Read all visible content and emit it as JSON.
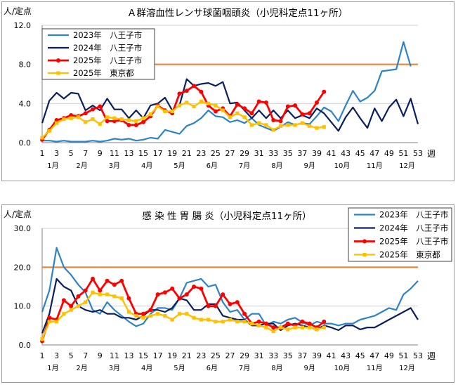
{
  "chart_data": [
    {
      "type": "line",
      "title": "Ａ群溶血性レンサ球菌咽頭炎（小児科定点11ヶ所）",
      "ylabel": "人/定点",
      "xlabel": "週",
      "ylim": [
        0,
        12
      ],
      "yticks": [
        "0.0",
        "4.0",
        "8.0",
        "12.0"
      ],
      "x": [
        1,
        2,
        3,
        4,
        5,
        6,
        7,
        8,
        9,
        10,
        11,
        12,
        13,
        14,
        15,
        16,
        17,
        18,
        19,
        20,
        21,
        22,
        23,
        24,
        25,
        26,
        27,
        28,
        29,
        30,
        31,
        32,
        33,
        34,
        35,
        36,
        37,
        38,
        39,
        40,
        41,
        42,
        43,
        44,
        45,
        46,
        47,
        48,
        49,
        50,
        51,
        52,
        53
      ],
      "xticks": [
        "1",
        "3",
        "5",
        "7",
        "9",
        "11",
        "13",
        "15",
        "17",
        "19",
        "21",
        "23",
        "25",
        "27",
        "29",
        "31",
        "33",
        "35",
        "37",
        "39",
        "41",
        "43",
        "45",
        "47",
        "49",
        "51",
        "53"
      ],
      "months": [
        "1月",
        "2月",
        "3月",
        "4月",
        "5月",
        "6月",
        "7月",
        "8月",
        "9月",
        "10月",
        "11月",
        "12月"
      ],
      "month_weeks": [
        2.5,
        6.5,
        11,
        15.5,
        20,
        24.5,
        29,
        33.5,
        38,
        42.5,
        47,
        51.5
      ],
      "threshold": 8,
      "threshold_color": "#ED7D31",
      "grid": "horizontal",
      "legend_position": "top-left",
      "series": [
        {
          "name": "2023年　八王子市",
          "color": "#2E83C6",
          "marker": "none",
          "values": [
            0.2,
            0.2,
            0.1,
            0.2,
            0.1,
            0.1,
            0.1,
            0.2,
            0.1,
            0.2,
            0.4,
            0.3,
            0.4,
            0.2,
            0.3,
            0.5,
            0.4,
            1.3,
            1.1,
            0.9,
            1.7,
            2.0,
            2.5,
            3.3,
            2.7,
            2.6,
            2.1,
            2.3,
            2.0,
            2.5,
            1.8,
            1.5,
            1.2,
            1.6,
            2.1,
            1.8,
            2.0,
            1.9,
            2.7,
            3.6,
            3.2,
            2.2,
            3.8,
            5.3,
            4.2,
            4.6,
            5.3,
            7.3,
            7.4,
            7.5,
            10.3,
            7.8,
            null
          ]
        },
        {
          "name": "2024年　八王子市",
          "color": "#0B1F5E",
          "marker": "none",
          "values": [
            2.0,
            4.3,
            5.1,
            4.5,
            5.1,
            5.0,
            3.3,
            3.8,
            3.3,
            4.5,
            3.4,
            3.4,
            2.5,
            3.3,
            2.5,
            3.8,
            4.0,
            4.6,
            3.3,
            3.8,
            6.5,
            5.8,
            6.0,
            6.1,
            5.8,
            6.2,
            4.0,
            4.1,
            3.3,
            2.5,
            3.3,
            2.5,
            3.3,
            2.5,
            3.3,
            2.5,
            2.8,
            2.5,
            3.5,
            3.0,
            2.1,
            1.2,
            2.6,
            3.6,
            2.5,
            1.5,
            3.5,
            2.2,
            3.6,
            4.4,
            2.7,
            4.5,
            1.9
          ]
        },
        {
          "name": "2025年　八王子市",
          "color": "#FF0000",
          "marker": "circle",
          "values": [
            0.3,
            1.3,
            2.3,
            2.5,
            2.8,
            2.7,
            3.0,
            3.4,
            3.7,
            2.2,
            2.2,
            2.3,
            1.8,
            1.8,
            2.1,
            2.7,
            3.8,
            3.3,
            3.0,
            5.0,
            5.3,
            5.8,
            5.2,
            3.8,
            3.2,
            3.5,
            2.7,
            3.9,
            3.5,
            3.0,
            4.2,
            4.1,
            2.3,
            2.2,
            3.7,
            3.8,
            2.9,
            3.0,
            4.1,
            5.2,
            null,
            null,
            null,
            null,
            null,
            null,
            null,
            null,
            null,
            null,
            null,
            null,
            null
          ]
        },
        {
          "name": "2025年　東京都",
          "color": "#FFC000",
          "marker": "square",
          "values": [
            0.5,
            1.2,
            2.0,
            2.4,
            2.5,
            2.6,
            2.1,
            2.4,
            1.9,
            2.6,
            2.5,
            2.4,
            2.3,
            2.2,
            2.5,
            2.9,
            3.7,
            3.2,
            3.2,
            3.8,
            4.1,
            3.7,
            4.2,
            4.0,
            3.8,
            3.3,
            2.6,
            3.0,
            2.6,
            1.8,
            2.0,
            1.8,
            1.3,
            1.7,
            1.8,
            1.8,
            2.0,
            1.7,
            1.5,
            1.6,
            null,
            null,
            null,
            null,
            null,
            null,
            null,
            null,
            null,
            null,
            null,
            null,
            null
          ]
        }
      ]
    },
    {
      "type": "line",
      "title": "感 染 性 胃 腸 炎（小児科定点11ヶ所）",
      "ylabel": "人/定点",
      "xlabel": "週",
      "ylim": [
        0,
        30
      ],
      "yticks": [
        "0.0",
        "10.0",
        "20.0",
        "30.0"
      ],
      "x": [
        1,
        2,
        3,
        4,
        5,
        6,
        7,
        8,
        9,
        10,
        11,
        12,
        13,
        14,
        15,
        16,
        17,
        18,
        19,
        20,
        21,
        22,
        23,
        24,
        25,
        26,
        27,
        28,
        29,
        30,
        31,
        32,
        33,
        34,
        35,
        36,
        37,
        38,
        39,
        40,
        41,
        42,
        43,
        44,
        45,
        46,
        47,
        48,
        49,
        50,
        51,
        52,
        53
      ],
      "xticks": [
        "1",
        "3",
        "5",
        "7",
        "9",
        "11",
        "13",
        "15",
        "17",
        "19",
        "21",
        "23",
        "25",
        "27",
        "29",
        "31",
        "33",
        "35",
        "37",
        "39",
        "41",
        "43",
        "45",
        "47",
        "49",
        "51",
        "53"
      ],
      "months": [
        "1月",
        "2月",
        "3月",
        "4月",
        "5月",
        "6月",
        "7月",
        "8月",
        "9月",
        "10月",
        "11月",
        "12月"
      ],
      "month_weeks": [
        2.5,
        6.5,
        11,
        15.5,
        20,
        24.5,
        29,
        33.5,
        38,
        42.5,
        47,
        51.5
      ],
      "threshold": 20,
      "threshold_color": "#ED7D31",
      "grid": "horizontal",
      "legend_position": "top-right",
      "series": [
        {
          "name": "2023年　八王子市",
          "color": "#2E83C6",
          "marker": "none",
          "values": [
            8.5,
            14.0,
            25.0,
            20.0,
            18.0,
            15.5,
            13.5,
            9.0,
            8.0,
            11.0,
            9.0,
            7.5,
            6.0,
            4.8,
            5.5,
            8.0,
            9.5,
            9.5,
            9.0,
            12.0,
            16.0,
            16.5,
            17.0,
            15.0,
            15.5,
            11.0,
            8.5,
            9.0,
            6.5,
            8.0,
            8.0,
            5.0,
            6.0,
            5.5,
            6.5,
            7.0,
            5.8,
            5.0,
            6.0,
            5.5,
            5.5,
            5.0,
            5.5,
            5.5,
            6.5,
            7.0,
            7.5,
            8.5,
            9.5,
            9.0,
            13.0,
            14.5,
            16.5
          ]
        },
        {
          "name": "2024年　八王子市",
          "color": "#0B1F5E",
          "marker": "none",
          "values": [
            3.0,
            8.0,
            17.0,
            15.0,
            14.0,
            10.0,
            9.0,
            8.5,
            9.0,
            8.0,
            8.0,
            7.0,
            7.0,
            6.5,
            7.5,
            9.0,
            9.0,
            8.5,
            9.5,
            12.0,
            11.5,
            9.0,
            9.0,
            10.5,
            10.5,
            7.5,
            7.0,
            6.5,
            6.5,
            5.0,
            5.0,
            5.5,
            5.5,
            3.8,
            5.0,
            5.5,
            5.0,
            4.5,
            4.0,
            5.0,
            4.5,
            3.8,
            5.0,
            5.0,
            4.0,
            4.5,
            4.5,
            5.5,
            6.5,
            7.5,
            8.5,
            9.5,
            6.5
          ]
        },
        {
          "name": "2025年　八王子市",
          "color": "#FF0000",
          "marker": "circle",
          "values": [
            1.0,
            7.0,
            6.5,
            11.5,
            10.0,
            12.5,
            14.0,
            17.0,
            14.0,
            16.5,
            15.5,
            16.5,
            12.0,
            8.0,
            8.0,
            9.0,
            13.0,
            13.5,
            14.5,
            12.0,
            13.0,
            15.0,
            14.5,
            10.0,
            10.0,
            13.0,
            10.5,
            11.0,
            8.0,
            5.5,
            6.0,
            5.5,
            4.5,
            4.5,
            5.5,
            5.0,
            6.0,
            5.5,
            4.5,
            6.0,
            null,
            null,
            null,
            null,
            null,
            null,
            null,
            null,
            null,
            null,
            null,
            null,
            null
          ]
        },
        {
          "name": "2025年　東京都",
          "color": "#FFC000",
          "marker": "square",
          "values": [
            1.5,
            6.0,
            6.0,
            8.0,
            9.0,
            10.0,
            11.0,
            13.5,
            13.0,
            13.0,
            12.5,
            12.0,
            8.5,
            7.5,
            7.0,
            7.5,
            8.0,
            7.5,
            6.5,
            8.0,
            8.0,
            7.0,
            6.5,
            6.5,
            6.0,
            6.0,
            6.5,
            6.0,
            6.0,
            5.5,
            5.0,
            4.5,
            3.5,
            4.5,
            4.0,
            4.5,
            4.5,
            4.5,
            4.0,
            4.5,
            null,
            null,
            null,
            null,
            null,
            null,
            null,
            null,
            null,
            null,
            null,
            null,
            null
          ]
        }
      ]
    }
  ]
}
